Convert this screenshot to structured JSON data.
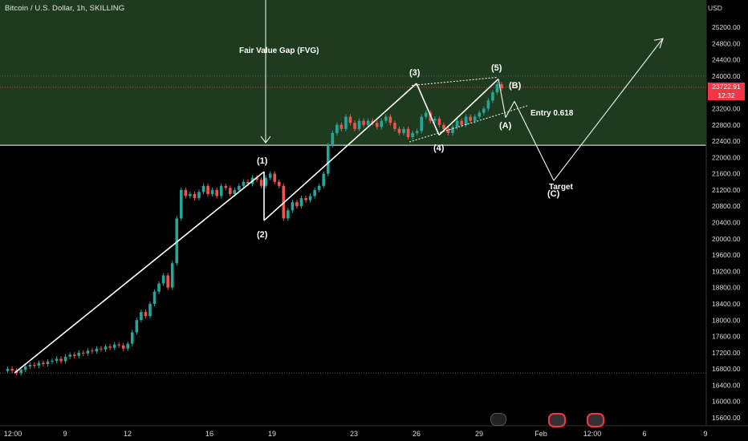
{
  "header": {
    "symbol_title": "Bitcoin / U.S. Dollar, 1h, SKILLING",
    "currency": "USD"
  },
  "price_tag": {
    "price": "23722.91",
    "countdown": "12:32",
    "color": "#f23645"
  },
  "annotations": {
    "fvg_label": "Fair Value Gap (FVG)",
    "wave1": "(1)",
    "wave2": "(2)",
    "wave3": "(3)",
    "wave4": "(4)",
    "wave5": "(5)",
    "waveA": "(A)",
    "waveB": "(B)",
    "waveC": "(C)",
    "entry": "Entry  0.618",
    "target": "Target"
  },
  "colors": {
    "background": "#000000",
    "fvg_zone": "#1f3b1f",
    "up_candle": "#26a69a",
    "down_candle": "#ef5350",
    "wave_line": "#ffffff"
  },
  "chart_data": {
    "type": "candlestick",
    "title": "Bitcoin / U.S. Dollar, 1h, SKILLING",
    "y_ticks": [
      25200,
      24800,
      24400,
      24000,
      23600,
      23200,
      22800,
      22400,
      22000,
      21600,
      21200,
      20800,
      20400,
      20000,
      19600,
      19200,
      18800,
      18400,
      18000,
      17600,
      17200,
      16800,
      16400,
      16000,
      15600
    ],
    "ylim": [
      15400,
      25600
    ],
    "x_ticks": [
      "12:00",
      "9",
      "12",
      "16",
      "19",
      "23",
      "26",
      "29",
      "Feb",
      "12:00",
      "6",
      "9"
    ],
    "fvg_zone": {
      "top": 25600,
      "bottom": 22300
    },
    "last_price": 23722.91,
    "reference_line": 16700,
    "elliott_waves": [
      {
        "label": "start",
        "price": 16700
      },
      {
        "label": "(1)",
        "price": 21650
      },
      {
        "label": "(2)",
        "price": 20450
      },
      {
        "label": "(3)",
        "price": 23820
      },
      {
        "label": "(4)",
        "price": 22550
      },
      {
        "label": "(5)",
        "price": 23930
      }
    ],
    "projection": [
      {
        "label": "(A)",
        "price": 22980
      },
      {
        "label": "(B)",
        "price": 23380
      },
      {
        "label": "Entry 0.618",
        "price": 23130
      },
      {
        "label": "(C) Target",
        "price": 21430
      },
      {
        "label": "end",
        "price": 24900
      }
    ],
    "price_path": [
      [
        16750,
        16800,
        16760,
        16700,
        16780,
        16860,
        16900,
        16880,
        16950,
        16920,
        16980,
        17000,
        17050,
        16990,
        17100,
        17150,
        17120,
        17200,
        17180,
        17250,
        17230,
        17300,
        17280,
        17350,
        17320,
        17400,
        17380,
        17300,
        17420,
        17700,
        18000,
        18200,
        18100,
        18400,
        18700,
        18900,
        19100,
        18800,
        19400,
        20500,
        21200,
        21050,
        21100,
        21000,
        21150,
        21300,
        21100,
        21200,
        21050,
        21300,
        21250,
        21100,
        21200,
        21300,
        21400,
        21350,
        21500,
        21450,
        21300,
        21500,
        21600,
        21400,
        21300,
        20500,
        20700,
        20900,
        20800,
        21000,
        20950,
        21050,
        21200,
        21300,
        21600,
        22300,
        22600,
        22800,
        22700,
        23000,
        22850,
        22700,
        22900,
        22800,
        22900,
        22850,
        22750,
        22900,
        23000,
        22850,
        22700,
        22600,
        22700,
        22500,
        22600,
        22650,
        23000,
        23100,
        22900,
        22950,
        22800,
        22700,
        22600,
        22750,
        22900,
        22800,
        23000,
        22900,
        23000,
        23100,
        23200,
        23400,
        23600,
        23800,
        23700
      ]
    ]
  }
}
